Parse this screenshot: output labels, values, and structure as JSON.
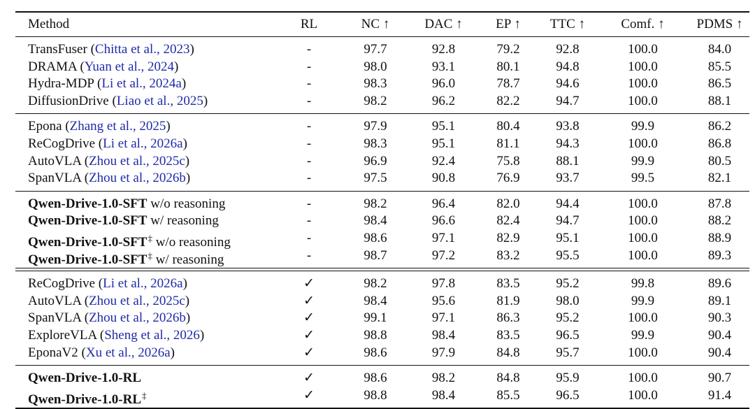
{
  "headers": {
    "method": "Method",
    "rl": "RL",
    "nc": "NC ↑",
    "dac": "DAC ↑",
    "ep": "EP ↑",
    "ttc": "TTC ↑",
    "comf": "Comf. ↑",
    "pdms": "PDMS ↑"
  },
  "groups": [
    {
      "rows": [
        {
          "name": "TransFuser",
          "bold": false,
          "dagger": false,
          "suffix": "",
          "cite": "Chitta et al., 2023",
          "rl": "-",
          "nc": "97.7",
          "dac": "92.8",
          "ep": "79.2",
          "ttc": "92.8",
          "comf": "100.0",
          "pdms": "84.0"
        },
        {
          "name": "DRAMA",
          "bold": false,
          "dagger": false,
          "suffix": "",
          "cite": "Yuan et al., 2024",
          "rl": "-",
          "nc": "98.0",
          "dac": "93.1",
          "ep": "80.1",
          "ttc": "94.8",
          "comf": "100.0",
          "pdms": "85.5"
        },
        {
          "name": "Hydra-MDP",
          "bold": false,
          "dagger": false,
          "suffix": "",
          "cite": "Li et al., 2024a",
          "rl": "-",
          "nc": "98.3",
          "dac": "96.0",
          "ep": "78.7",
          "ttc": "94.6",
          "comf": "100.0",
          "pdms": "86.5"
        },
        {
          "name": "DiffusionDrive",
          "bold": false,
          "dagger": false,
          "suffix": "",
          "cite": "Liao et al., 2025",
          "rl": "-",
          "nc": "98.2",
          "dac": "96.2",
          "ep": "82.2",
          "ttc": "94.7",
          "comf": "100.0",
          "pdms": "88.1"
        }
      ]
    },
    {
      "rows": [
        {
          "name": "Epona",
          "bold": false,
          "dagger": false,
          "suffix": "",
          "cite": "Zhang et al., 2025",
          "rl": "-",
          "nc": "97.9",
          "dac": "95.1",
          "ep": "80.4",
          "ttc": "93.8",
          "comf": "99.9",
          "pdms": "86.2"
        },
        {
          "name": "ReCogDrive",
          "bold": false,
          "dagger": false,
          "suffix": "",
          "cite": "Li et al., 2026a",
          "rl": "-",
          "nc": "98.3",
          "dac": "95.1",
          "ep": "81.1",
          "ttc": "94.3",
          "comf": "100.0",
          "pdms": "86.8"
        },
        {
          "name": "AutoVLA",
          "bold": false,
          "dagger": false,
          "suffix": "",
          "cite": "Zhou et al., 2025c",
          "rl": "-",
          "nc": "96.9",
          "dac": "92.4",
          "ep": "75.8",
          "ttc": "88.1",
          "comf": "99.9",
          "pdms": "80.5"
        },
        {
          "name": "SpanVLA",
          "bold": false,
          "dagger": false,
          "suffix": "",
          "cite": "Zhou et al., 2026b",
          "rl": "-",
          "nc": "97.5",
          "dac": "90.8",
          "ep": "76.9",
          "ttc": "93.7",
          "comf": "99.5",
          "pdms": "82.1"
        }
      ]
    },
    {
      "rows": [
        {
          "name": "Qwen-Drive-1.0-SFT",
          "bold": true,
          "dagger": false,
          "suffix": "w/o reasoning",
          "cite": "",
          "rl": "-",
          "nc": "98.2",
          "dac": "96.4",
          "ep": "82.0",
          "ttc": "94.4",
          "comf": "100.0",
          "pdms": "87.8"
        },
        {
          "name": "Qwen-Drive-1.0-SFT",
          "bold": true,
          "dagger": false,
          "suffix": "w/ reasoning",
          "cite": "",
          "rl": "-",
          "nc": "98.4",
          "dac": "96.6",
          "ep": "82.4",
          "ttc": "94.7",
          "comf": "100.0",
          "pdms": "88.2"
        },
        {
          "name": "Qwen-Drive-1.0-SFT",
          "bold": true,
          "dagger": true,
          "suffix": "w/o reasoning",
          "cite": "",
          "rl": "-",
          "nc": "98.6",
          "dac": "97.1",
          "ep": "82.9",
          "ttc": "95.1",
          "comf": "100.0",
          "pdms": "88.9"
        },
        {
          "name": "Qwen-Drive-1.0-SFT",
          "bold": true,
          "dagger": true,
          "suffix": "w/ reasoning",
          "cite": "",
          "rl": "-",
          "nc": "98.7",
          "dac": "97.2",
          "ep": "83.2",
          "ttc": "95.5",
          "comf": "100.0",
          "pdms": "89.3"
        }
      ]
    },
    {
      "rows": [
        {
          "name": "ReCogDrive",
          "bold": false,
          "dagger": false,
          "suffix": "",
          "cite": "Li et al., 2026a",
          "rl": "✓",
          "nc": "98.2",
          "dac": "97.8",
          "ep": "83.5",
          "ttc": "95.2",
          "comf": "99.8",
          "pdms": "89.6"
        },
        {
          "name": "AutoVLA",
          "bold": false,
          "dagger": false,
          "suffix": "",
          "cite": "Zhou et al., 2025c",
          "rl": "✓",
          "nc": "98.4",
          "dac": "95.6",
          "ep": "81.9",
          "ttc": "98.0",
          "comf": "99.9",
          "pdms": "89.1"
        },
        {
          "name": "SpanVLA",
          "bold": false,
          "dagger": false,
          "suffix": "",
          "cite": "Zhou et al., 2026b",
          "rl": "✓",
          "nc": "99.1",
          "dac": "97.1",
          "ep": "86.3",
          "ttc": "95.2",
          "comf": "100.0",
          "pdms": "90.3"
        },
        {
          "name": "ExploreVLA",
          "bold": false,
          "dagger": false,
          "suffix": "",
          "cite": "Sheng et al., 2026",
          "rl": "✓",
          "nc": "98.8",
          "dac": "98.4",
          "ep": "83.5",
          "ttc": "96.5",
          "comf": "99.9",
          "pdms": "90.4"
        },
        {
          "name": "EponaV2",
          "bold": false,
          "dagger": false,
          "suffix": "",
          "cite": "Xu et al., 2026a",
          "rl": "✓",
          "nc": "98.6",
          "dac": "97.9",
          "ep": "84.8",
          "ttc": "95.7",
          "comf": "100.0",
          "pdms": "90.4"
        }
      ]
    },
    {
      "rows": [
        {
          "name": "Qwen-Drive-1.0-RL",
          "bold": true,
          "dagger": false,
          "suffix": "",
          "cite": "",
          "rl": "✓",
          "nc": "98.6",
          "dac": "98.2",
          "ep": "84.8",
          "ttc": "95.9",
          "comf": "100.0",
          "pdms": "90.7"
        },
        {
          "name": "Qwen-Drive-1.0-RL",
          "bold": true,
          "dagger": true,
          "suffix": "",
          "cite": "",
          "rl": "✓",
          "nc": "98.8",
          "dac": "98.4",
          "ep": "85.5",
          "ttc": "96.5",
          "comf": "100.0",
          "pdms": "91.4"
        }
      ]
    }
  ]
}
